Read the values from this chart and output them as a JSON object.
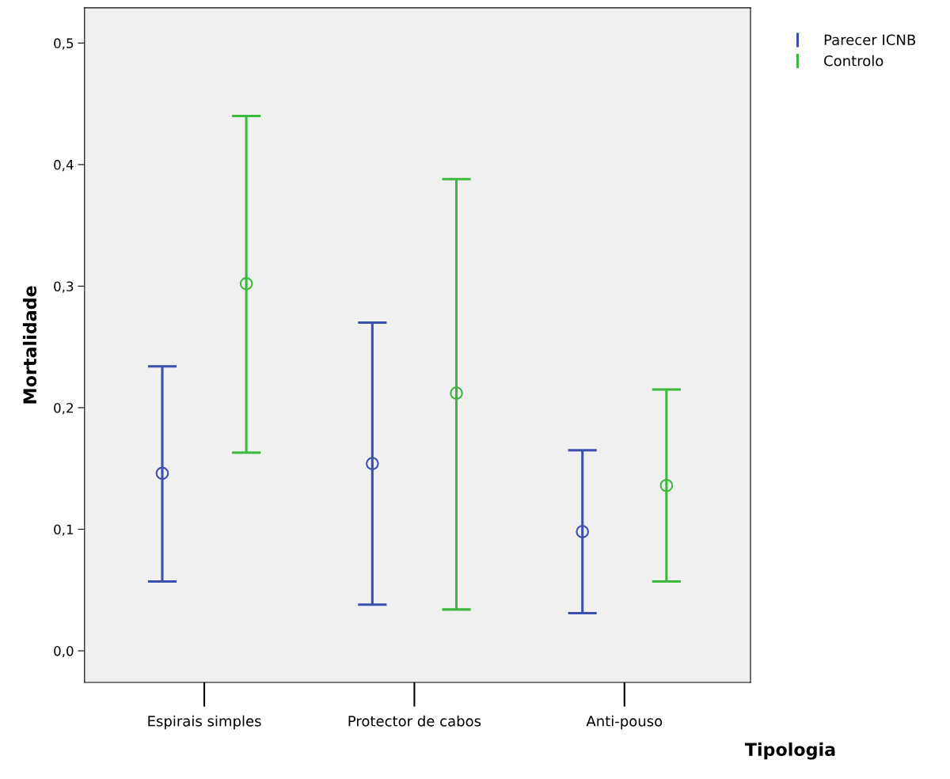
{
  "chart_data": {
    "type": "scatter",
    "xlabel": "Tipologia",
    "ylabel": "Mortalidade",
    "categories": [
      "Espirais simples",
      "Protector de cabos",
      "Anti-pouso"
    ],
    "series": [
      {
        "name": "Parecer ICNB",
        "color": "#3a4fb0",
        "values": [
          0.146,
          0.154,
          0.098
        ],
        "errors": [
          [
            0.057,
            0.234
          ],
          [
            0.038,
            0.27
          ],
          [
            0.031,
            0.165
          ]
        ]
      },
      {
        "name": "Controlo",
        "color": "#3cb83c",
        "values": [
          0.302,
          0.212,
          0.136
        ],
        "errors": [
          [
            0.163,
            0.44
          ],
          [
            0.034,
            0.388
          ],
          [
            0.057,
            0.215
          ]
        ]
      }
    ],
    "ylim": [
      -0.026,
      0.529
    ],
    "yticks": [
      {
        "value": 0,
        "label": "0,0"
      },
      {
        "value": 0.1,
        "label": "0,1"
      },
      {
        "value": 0.2,
        "label": "0,2"
      },
      {
        "value": 0.3,
        "label": "0,3"
      },
      {
        "value": 0.4,
        "label": "0,4"
      },
      {
        "value": 0.5,
        "label": "0,5"
      }
    ],
    "marker": "circle",
    "grid": false,
    "legend": "top right"
  }
}
